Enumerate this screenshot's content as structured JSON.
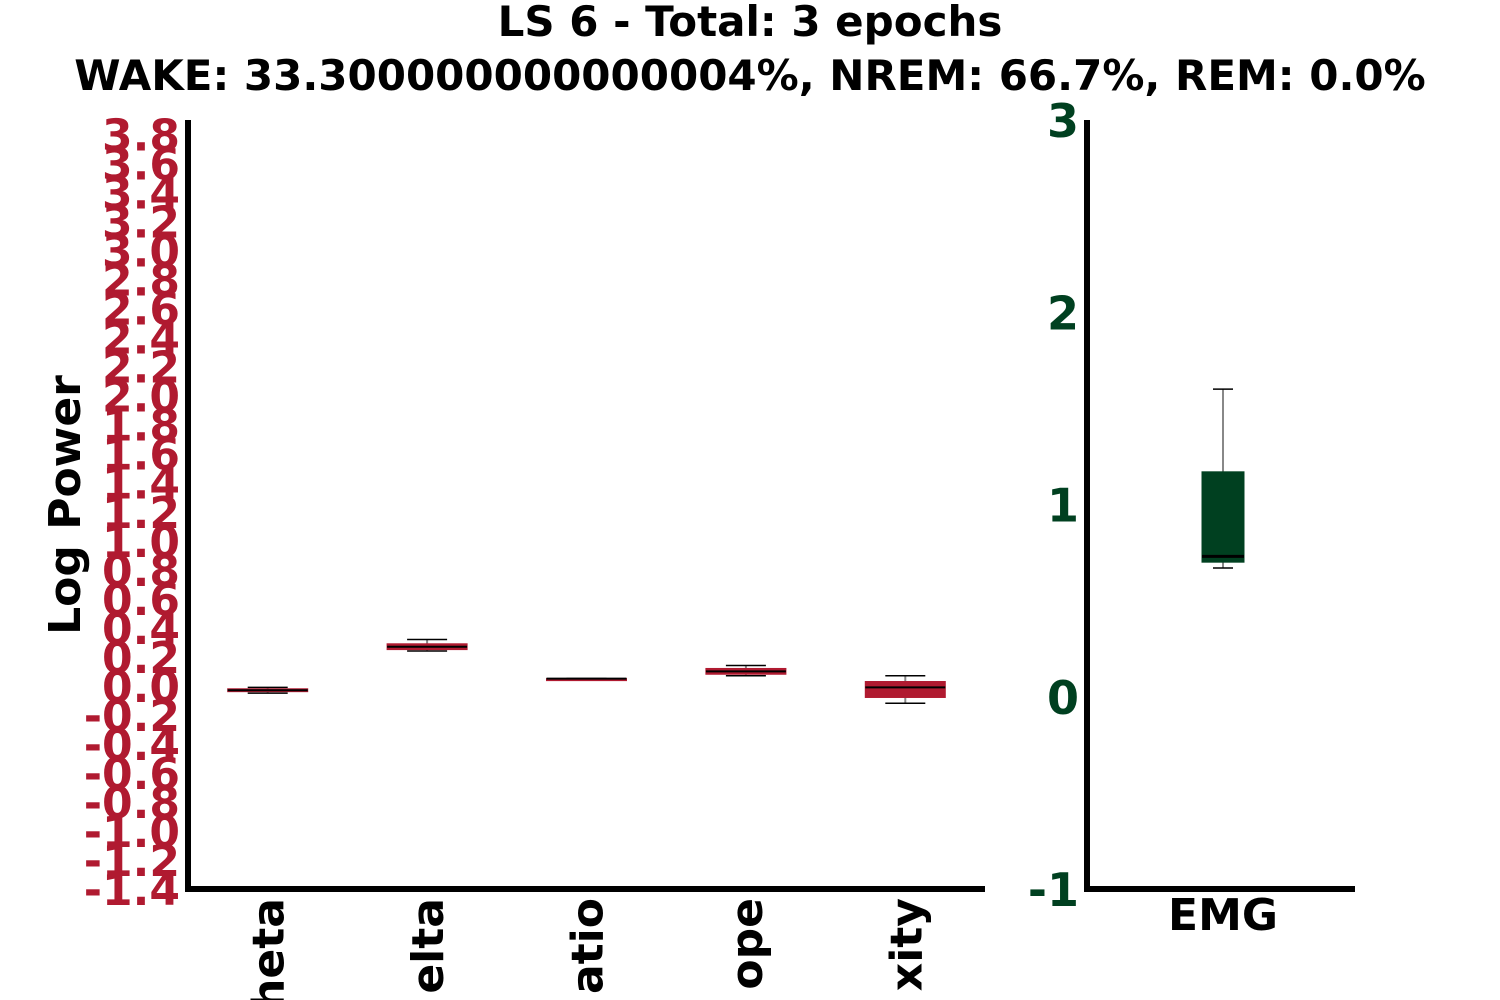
{
  "title_line1": "LS 6 - Total: 3 epochs",
  "title_line2": "WAKE: 33.300000000000004%, NREM: 66.7%, REM: 0.0%",
  "chart_data": [
    {
      "type": "box",
      "ylabel": "Log Power",
      "tick_color": "#b01a30",
      "box_color": "#b01a30",
      "ylim": [
        -1.4,
        3.9
      ],
      "categories": [
        "theta",
        "delta",
        "ratio",
        "slope",
        "complexity"
      ],
      "displayed_category_fragments": [
        "heta",
        "elta",
        "atio",
        "ope",
        "xity"
      ],
      "y_tick_labels_overlapping": [
        "-1.4",
        "-1.2",
        "-1.0",
        "-0.8",
        "-0.6",
        "-0.4",
        "-0.2",
        "0.0",
        "0.2",
        "0.4",
        "0.6",
        "0.8",
        "1.0",
        "1.2",
        "1.4",
        "1.6",
        "1.8",
        "2.0",
        "2.2",
        "2.4",
        "2.6",
        "2.8",
        "3.0",
        "3.2",
        "3.4",
        "3.6",
        "3.8"
      ],
      "boxes": [
        {
          "category": "theta",
          "whisker_low": -0.05,
          "q1": -0.04,
          "median": -0.03,
          "q3": -0.02,
          "whisker_high": -0.01
        },
        {
          "category": "delta",
          "whisker_low": 0.24,
          "q1": 0.25,
          "median": 0.27,
          "q3": 0.29,
          "whisker_high": 0.32
        },
        {
          "category": "ratio",
          "whisker_low": 0.05,
          "q1": 0.05,
          "median": 0.05,
          "q3": 0.05,
          "whisker_high": 0.05
        },
        {
          "category": "slope",
          "whisker_low": 0.07,
          "q1": 0.08,
          "median": 0.1,
          "q3": 0.12,
          "whisker_high": 0.14
        },
        {
          "category": "complexity",
          "whisker_low": -0.12,
          "q1": -0.08,
          "median": -0.01,
          "q3": 0.03,
          "whisker_high": 0.07
        }
      ]
    },
    {
      "type": "box",
      "ylabel": "",
      "tick_color": "#004020",
      "box_color": "#004020",
      "ylim": [
        -1,
        3
      ],
      "yticks": [
        -1,
        0,
        1,
        2,
        3
      ],
      "categories": [
        "EMG"
      ],
      "boxes": [
        {
          "category": "EMG",
          "whisker_low": 0.67,
          "q1": 0.7,
          "median": 0.73,
          "q3": 1.17,
          "whisker_high": 1.6
        }
      ]
    }
  ]
}
